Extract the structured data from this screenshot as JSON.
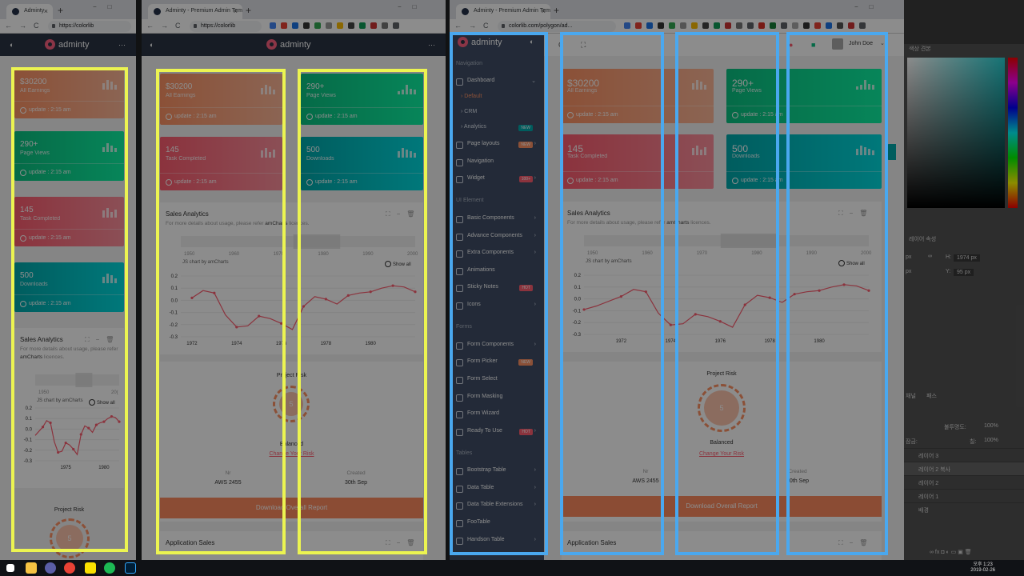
{
  "windows": {
    "w1": {
      "tab_title": "Adminty",
      "url": "https://colorlib"
    },
    "w2": {
      "tab_title": "Adminty - Premium Admin Tem",
      "url": "https://colorlib"
    },
    "w3": {
      "tab_title": "Adminty - Premium Admin Tem",
      "url": "colorlib.com/polygon/ad..."
    }
  },
  "brand": "adminty",
  "user": {
    "name": "John Doe"
  },
  "cards": {
    "earnings": {
      "value": "$30200",
      "label": "All Earnings",
      "update": "update : 2:15 am"
    },
    "views": {
      "value": "290+",
      "label": "Page Views",
      "update": "update : 2:15 am"
    },
    "tasks": {
      "value": "145",
      "label": "Task Completed",
      "update": "update : 2:15 am"
    },
    "downloads": {
      "value": "500",
      "label": "Downloads",
      "update": "update : 2:15 am"
    }
  },
  "sales": {
    "title": "Sales Analytics",
    "subtitle_prefix": "For more details about usage, please refer",
    "subtitle_link": "amCharts",
    "subtitle_suffix": "licences.",
    "credit": "JS chart by amCharts",
    "show_all": "Show all"
  },
  "chart_data": {
    "type": "line",
    "x": [
      1970.5,
      1971,
      1972,
      1972.5,
      1973,
      1973.5,
      1974,
      1974.5,
      1975,
      1975.5,
      1976,
      1976.5,
      1977,
      1977.5,
      1978,
      1978.5,
      1979,
      1979.5,
      1980,
      1980.5,
      1981,
      1981.5,
      1982
    ],
    "values": [
      -0.09,
      -0.06,
      0.02,
      0.08,
      0.06,
      -0.12,
      -0.22,
      -0.21,
      -0.13,
      -0.15,
      -0.19,
      -0.24,
      -0.05,
      0.03,
      0.01,
      -0.03,
      0.04,
      0.06,
      0.07,
      0.1,
      0.12,
      0.11,
      0.07
    ],
    "xticks": [
      "1972",
      "1974",
      "1976",
      "1978",
      "1980"
    ],
    "xticks_narrow": [
      "1975",
      "1980"
    ],
    "yticks": [
      "0.2",
      "0.1",
      "0.0",
      "-0.1",
      "-0.2",
      "-0.3"
    ],
    "scroll_ticks": [
      "1950",
      "1960",
      "1970",
      "1980",
      "1990",
      "2000"
    ],
    "scroll_ticks_narrow": [
      "1950",
      "20("
    ],
    "ylim": [
      -0.3,
      0.2
    ],
    "color": "#fe5d70"
  },
  "project": {
    "title": "Project Risk",
    "score": "5",
    "status": "Balanced",
    "link": "Change Your Risk",
    "nr_label": "Nr",
    "nr_value": "AWS 2455",
    "created_label": "Created",
    "created_value": "30th Sep",
    "download": "Download Overall Report"
  },
  "app_sales": {
    "title": "Application Sales"
  },
  "sidebar": {
    "sections": {
      "navigation": "Navigation",
      "ui": "UI Element",
      "forms": "Forms",
      "tables": "Tables"
    },
    "dashboard": "Dashboard",
    "subs": [
      "Default",
      "CRM",
      "Analytics"
    ],
    "new": "NEW",
    "hot": "HOT",
    "hundred": "100+",
    "items": [
      "Page layouts",
      "Navigation",
      "Widget",
      "Basic Components",
      "Advance Components",
      "Extra Components",
      "Animations",
      "Sticky Notes",
      "Icons",
      "Form Components",
      "Form Picker",
      "Form Select",
      "Form Masking",
      "Form Wizard",
      "Ready To Use",
      "Bootstrap Table",
      "Data Table",
      "Data Table Extensions",
      "FooTable",
      "Handson Table"
    ]
  },
  "photoshop": {
    "label_korean": "색상 견본",
    "props": "레이어 속성",
    "h": "1974 px",
    "y": "95 px",
    "h_label": "H:",
    "y_label": "Y:",
    "tabs": [
      "채널",
      "패스"
    ],
    "opacity_label": "불투명도:",
    "opacity": "100%",
    "fill_label": "칠:",
    "fill": "100%",
    "lock_label": "잠금:",
    "px_unit": "px",
    "layers": [
      "레이어 3",
      "레이어 2 복사",
      "레이어 2",
      "레이어 1",
      "배경"
    ]
  },
  "clock": {
    "time": "오후 1:23",
    "date": "2019-02-26"
  }
}
